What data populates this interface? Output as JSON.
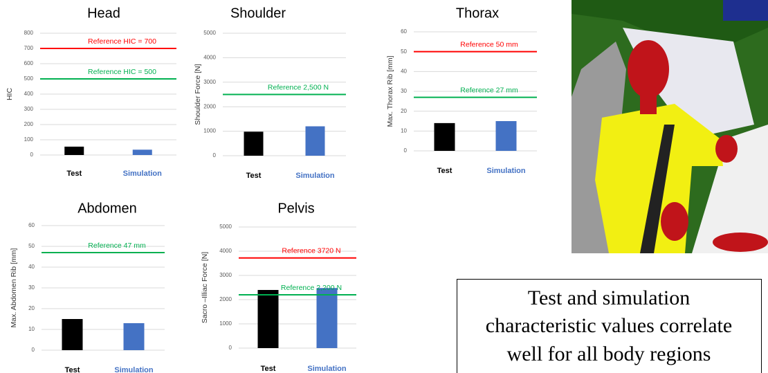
{
  "chart_data": [
    {
      "type": "bar",
      "title": "Head",
      "y_label": "HIC",
      "categories": [
        "Test",
        "Simulation"
      ],
      "values": [
        55,
        35
      ],
      "colors": [
        "#000000",
        "#4472c4"
      ],
      "ylim": [
        0,
        800
      ],
      "yticks": [
        0,
        100,
        200,
        300,
        400,
        500,
        600,
        700,
        800
      ],
      "grid": true,
      "reference_lines": [
        {
          "label": "Reference HIC = 700",
          "value": 700,
          "color": "#ff0000"
        },
        {
          "label": "Reference HIC = 500",
          "value": 500,
          "color": "#00b050"
        }
      ]
    },
    {
      "type": "bar",
      "title": "Shoulder",
      "y_label": "Shoulder Force [N]",
      "categories": [
        "Test",
        "Simulation"
      ],
      "values": [
        980,
        1200
      ],
      "colors": [
        "#000000",
        "#4472c4"
      ],
      "ylim": [
        0,
        5000
      ],
      "yticks": [
        0,
        1000,
        2000,
        3000,
        4000,
        5000
      ],
      "grid": true,
      "reference_lines": [
        {
          "label": "Reference 2,500 N",
          "value": 2500,
          "color": "#00b050"
        }
      ]
    },
    {
      "type": "bar",
      "title": "Thorax",
      "y_label": "Max. Thorax Rib  [mm]",
      "categories": [
        "Test",
        "Simulation"
      ],
      "values": [
        14,
        15
      ],
      "colors": [
        "#000000",
        "#4472c4"
      ],
      "ylim": [
        0,
        60
      ],
      "yticks": [
        0,
        10,
        20,
        30,
        40,
        50,
        60
      ],
      "grid": true,
      "reference_lines": [
        {
          "label": "Reference 50 mm",
          "value": 50,
          "color": "#ff0000"
        },
        {
          "label": "Reference 27 mm",
          "value": 27,
          "color": "#00b050"
        }
      ]
    },
    {
      "type": "bar",
      "title": "Abdomen",
      "y_label": "Max. Abdomen Rib  [mm]",
      "categories": [
        "Test",
        "Simulation"
      ],
      "values": [
        15,
        13
      ],
      "colors": [
        "#000000",
        "#4472c4"
      ],
      "ylim": [
        0,
        60
      ],
      "yticks": [
        0,
        10,
        20,
        30,
        40,
        50,
        60
      ],
      "grid": true,
      "reference_lines": [
        {
          "label": "Reference 47 mm",
          "value": 47,
          "color": "#00b050"
        }
      ]
    },
    {
      "type": "bar",
      "title": "Pelvis",
      "y_label": "Sacro –Illiac Force [N]",
      "categories": [
        "Test",
        "Simulation"
      ],
      "values": [
        2400,
        2480
      ],
      "colors": [
        "#000000",
        "#4472c4"
      ],
      "ylim": [
        0,
        5000
      ],
      "yticks": [
        0,
        1000,
        2000,
        3000,
        4000,
        5000
      ],
      "grid": true,
      "reference_lines": [
        {
          "label": "Reference 3720 N",
          "value": 3720,
          "color": "#ff0000"
        },
        {
          "label": "Reference 2,200 N",
          "value": 2200,
          "color": "#00b050"
        }
      ]
    }
  ],
  "text_box": {
    "lines": [
      "Test and simulation",
      "characteristic values correlate",
      "well for all body regions"
    ]
  }
}
